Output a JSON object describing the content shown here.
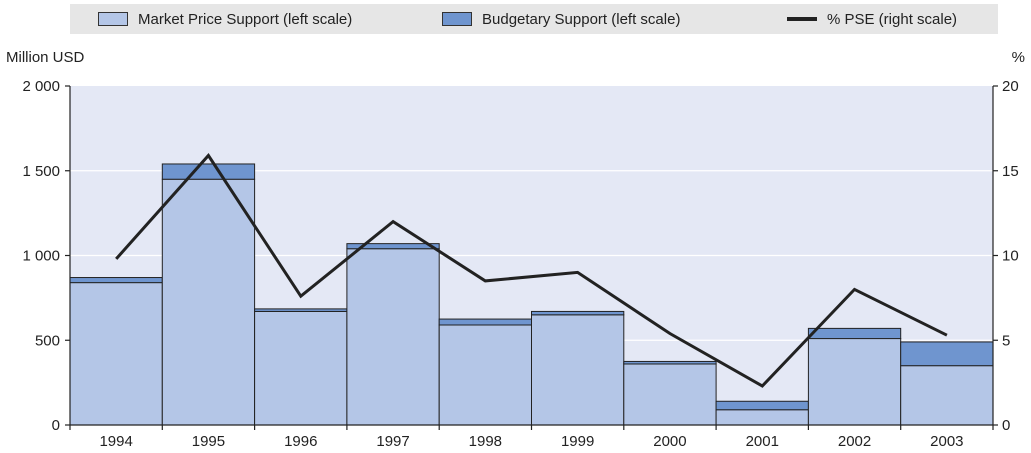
{
  "legend": {
    "mps_label": "Market Price Support (left scale)",
    "bs_label": "Budgetary Support (left scale)",
    "pse_label": "% PSE (right scale)"
  },
  "colors": {
    "market_price_support": "#b4c6e7",
    "budgetary_support": "#6f95cf",
    "pse_line": "#222222",
    "plot_background": "#e4e8f5",
    "legend_background": "#e6e6e6"
  },
  "chart_data": {
    "type": "bar",
    "stacked": true,
    "categories": [
      "1994",
      "1995",
      "1996",
      "1997",
      "1998",
      "1999",
      "2000",
      "2001",
      "2002",
      "2003"
    ],
    "series": [
      {
        "name": "Market Price Support (left scale)",
        "axis": "left",
        "values": [
          840,
          1450,
          670,
          1040,
          590,
          650,
          360,
          90,
          510,
          350
        ]
      },
      {
        "name": "Budgetary Support (left scale)",
        "axis": "left",
        "values": [
          30,
          90,
          15,
          30,
          35,
          20,
          15,
          50,
          60,
          140
        ]
      },
      {
        "name": "% PSE (right scale)",
        "axis": "right",
        "type": "line",
        "values": [
          9.8,
          15.9,
          7.6,
          12,
          8.5,
          9,
          5.4,
          2.3,
          8,
          5.3
        ]
      }
    ],
    "ylabel_left": "Million USD",
    "ylabel_right": "%",
    "ylim_left": [
      0,
      2000
    ],
    "ylim_right": [
      0,
      20
    ],
    "yticks_left": [
      "0",
      "500",
      "1 000",
      "1 500",
      "2 000"
    ],
    "yticks_right": [
      "0",
      "5",
      "10",
      "15",
      "20"
    ],
    "grid": true,
    "legend_position": "top"
  }
}
